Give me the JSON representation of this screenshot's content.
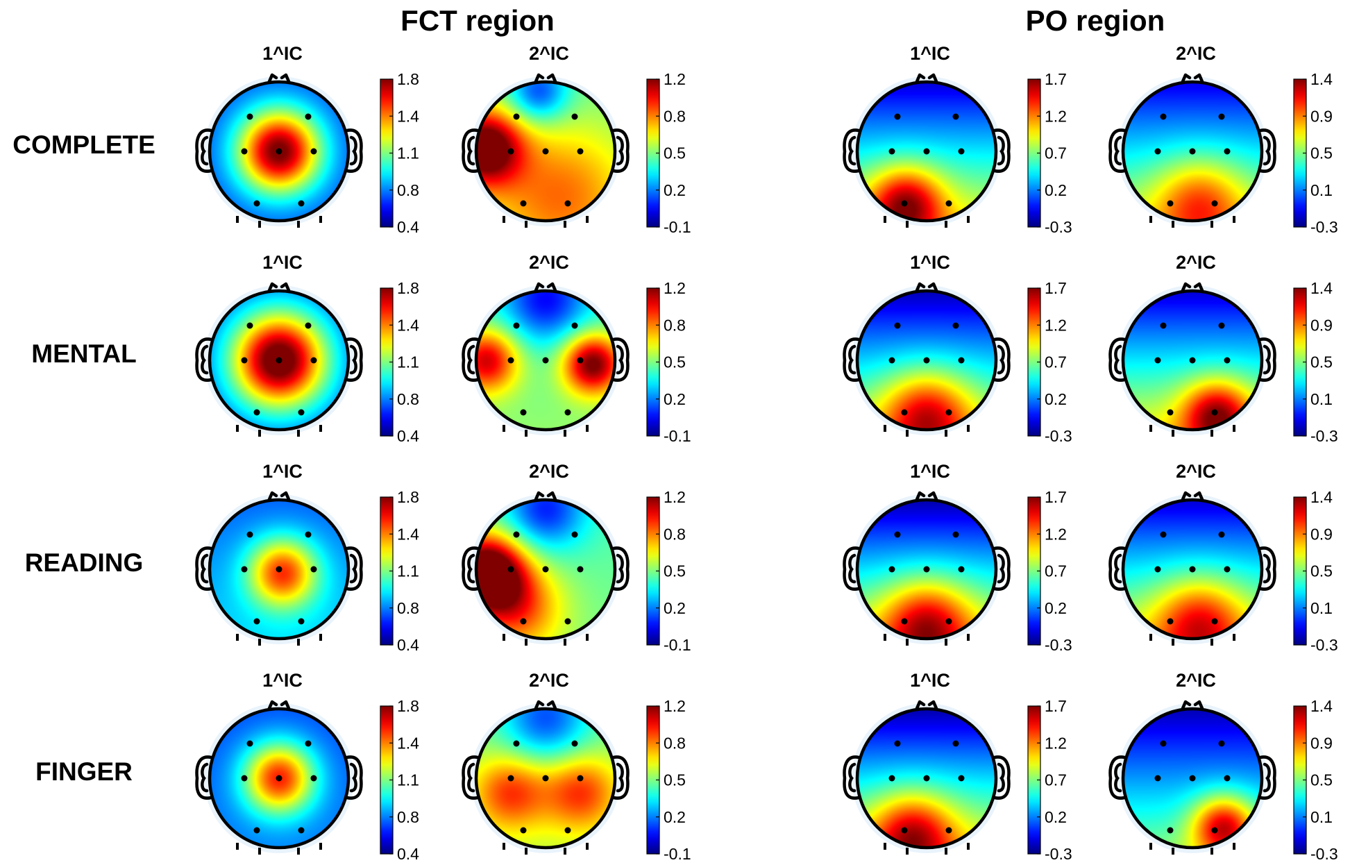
{
  "chart_data": {
    "type": "heatmap",
    "description_kind": "EEG scalp topographic maps of independent components",
    "regions": [
      {
        "title": "FCT region",
        "colorbar": {
          "ticks": [
            "1.8",
            "1.4",
            "1.1",
            "0.8",
            "0.4"
          ],
          "range": [
            0.4,
            1.8
          ]
        },
        "components": [
          {
            "title": "1^IC",
            "colorbar_ticks": [
              "1.8",
              "1.4",
              "1.1",
              "0.8",
              "0.4"
            ]
          },
          {
            "title": "2^IC",
            "colorbar_ticks": [
              "1.2",
              "0.8",
              "0.5",
              "0.2",
              "-0.1"
            ]
          }
        ]
      },
      {
        "title": "PO region",
        "components": [
          {
            "title": "1^IC",
            "colorbar_ticks": [
              "1.7",
              "1.2",
              "0.7",
              "0.2",
              "-0.3"
            ]
          },
          {
            "title": "2^IC",
            "colorbar_ticks": [
              "1.4",
              "0.9",
              "0.5",
              "0.1",
              "-0.3"
            ]
          }
        ]
      }
    ],
    "conditions": [
      "COMPLETE",
      "MENTAL",
      "READING",
      "FINGER"
    ],
    "maps": [
      [
        {
          "condition": "COMPLETE",
          "region": "FCT region",
          "component": "1^IC",
          "pattern": "central maximum (Cz)",
          "hotspots": [
            {
              "u": 0,
              "v": 0,
              "s": 0.42,
              "a": 0.82
            }
          ],
          "base": 0.2,
          "floor": 0.05,
          "vgrad": 0
        },
        {
          "condition": "COMPLETE",
          "region": "FCT region",
          "component": "2^IC",
          "pattern": "left temporal maximum, frontal minimum",
          "hotspots": [
            {
              "u": -0.88,
              "v": -0.05,
              "s": 0.38,
              "a": 0.6
            },
            {
              "u": 0.2,
              "v": 0.6,
              "s": 0.7,
              "a": 0.25
            },
            {
              "u": -0.1,
              "v": -0.85,
              "s": 0.3,
              "a": -0.3
            }
          ],
          "base": 0.48,
          "floor": 0.0,
          "vgrad": 0.05
        },
        {
          "condition": "COMPLETE",
          "region": "PO region",
          "component": "1^IC",
          "pattern": "occipital maximum",
          "hotspots": [
            {
              "u": -0.3,
              "v": 0.75,
              "s": 0.38,
              "a": 0.45
            }
          ],
          "base": 0.08,
          "floor": 0.0,
          "vgrad": 0.55
        },
        {
          "condition": "COMPLETE",
          "region": "PO region",
          "component": "2^IC",
          "pattern": "occipital maximum",
          "hotspots": [
            {
              "u": 0.1,
              "v": 0.72,
              "s": 0.45,
              "a": 0.3
            }
          ],
          "base": 0.1,
          "floor": 0.0,
          "vgrad": 0.5
        }
      ],
      [
        {
          "condition": "MENTAL",
          "region": "FCT region",
          "component": "1^IC",
          "pattern": "central maximum (Cz)",
          "hotspots": [
            {
              "u": 0,
              "v": 0,
              "s": 0.48,
              "a": 0.88
            }
          ],
          "base": 0.2,
          "floor": 0.05,
          "vgrad": 0
        },
        {
          "condition": "MENTAL",
          "region": "FCT region",
          "component": "2^IC",
          "pattern": "bilateral temporal maxima",
          "hotspots": [
            {
              "u": -0.85,
              "v": 0,
              "s": 0.32,
              "a": 0.45
            },
            {
              "u": 0.68,
              "v": 0.05,
              "s": 0.3,
              "a": 0.55
            },
            {
              "u": 0,
              "v": -0.85,
              "s": 0.42,
              "a": -0.3
            }
          ],
          "base": 0.42,
          "floor": 0.0,
          "vgrad": 0.1
        },
        {
          "condition": "MENTAL",
          "region": "PO region",
          "component": "1^IC",
          "pattern": "occipital maximum",
          "hotspots": [
            {
              "u": 0,
              "v": 0.78,
              "s": 0.45,
              "a": 0.4
            }
          ],
          "base": 0.05,
          "floor": 0.0,
          "vgrad": 0.55
        },
        {
          "condition": "MENTAL",
          "region": "PO region",
          "component": "2^IC",
          "pattern": "occipital maximum",
          "hotspots": [
            {
              "u": 0.35,
              "v": 0.78,
              "s": 0.35,
              "a": 0.45
            }
          ],
          "base": 0.08,
          "floor": 0.0,
          "vgrad": 0.55
        }
      ],
      [
        {
          "condition": "READING",
          "region": "FCT region",
          "component": "1^IC",
          "pattern": "central maximum (Cz)",
          "hotspots": [
            {
              "u": 0.05,
              "v": 0.05,
              "s": 0.35,
              "a": 0.55
            }
          ],
          "base": 0.22,
          "floor": 0.02,
          "vgrad": 0.12
        },
        {
          "condition": "READING",
          "region": "FCT region",
          "component": "2^IC",
          "pattern": "left temporal maximum",
          "hotspots": [
            {
              "u": -0.85,
              "v": 0.05,
              "s": 0.38,
              "a": 0.7
            },
            {
              "u": -0.4,
              "v": 0.55,
              "s": 0.45,
              "a": 0.3
            },
            {
              "u": 0,
              "v": -0.85,
              "s": 0.4,
              "a": -0.3
            }
          ],
          "base": 0.45,
          "floor": 0.0,
          "vgrad": 0.05
        },
        {
          "condition": "READING",
          "region": "PO region",
          "component": "1^IC",
          "pattern": "occipital maximum",
          "hotspots": [
            {
              "u": 0,
              "v": 0.78,
              "s": 0.45,
              "a": 0.4
            }
          ],
          "base": 0.04,
          "floor": 0.0,
          "vgrad": 0.6
        },
        {
          "condition": "READING",
          "region": "PO region",
          "component": "2^IC",
          "pattern": "occipital maximum",
          "hotspots": [
            {
              "u": 0.1,
              "v": 0.75,
              "s": 0.45,
              "a": 0.35
            }
          ],
          "base": 0.08,
          "floor": 0.0,
          "vgrad": 0.55
        }
      ],
      [
        {
          "condition": "FINGER",
          "region": "FCT region",
          "component": "1^IC",
          "pattern": "central maximum (Cz)",
          "hotspots": [
            {
              "u": 0,
              "v": 0,
              "s": 0.36,
              "a": 0.62
            }
          ],
          "base": 0.2,
          "floor": 0.05,
          "vgrad": 0.05
        },
        {
          "condition": "FINGER",
          "region": "FCT region",
          "component": "2^IC",
          "pattern": "broad central band",
          "hotspots": [
            {
              "u": -0.5,
              "v": 0.2,
              "s": 0.38,
              "a": 0.3
            },
            {
              "u": 0.5,
              "v": 0.2,
              "s": 0.38,
              "a": 0.3
            },
            {
              "u": 0,
              "v": -0.85,
              "s": 0.45,
              "a": -0.3
            }
          ],
          "base": 0.5,
          "floor": 0.0,
          "vgrad": 0.05
        },
        {
          "condition": "FINGER",
          "region": "PO region",
          "component": "1^IC",
          "pattern": "occipital maximum",
          "hotspots": [
            {
              "u": -0.2,
              "v": 0.8,
              "s": 0.42,
              "a": 0.4
            }
          ],
          "base": 0.04,
          "floor": 0.0,
          "vgrad": 0.6
        },
        {
          "condition": "FINGER",
          "region": "PO region",
          "component": "2^IC",
          "pattern": "right occipital maximum",
          "hotspots": [
            {
              "u": 0.45,
              "v": 0.7,
              "s": 0.32,
              "a": 0.5
            }
          ],
          "base": 0.05,
          "floor": 0.0,
          "vgrad": 0.45
        }
      ]
    ],
    "electrodes": [
      {
        "u": -0.42,
        "v": -0.5
      },
      {
        "u": 0.42,
        "v": -0.5
      },
      {
        "u": -0.5,
        "v": 0.0
      },
      {
        "u": 0.0,
        "v": 0.0
      },
      {
        "u": 0.5,
        "v": 0.0
      },
      {
        "u": -0.32,
        "v": 0.75
      },
      {
        "u": 0.32,
        "v": 0.75
      }
    ],
    "colormap": "jet"
  }
}
